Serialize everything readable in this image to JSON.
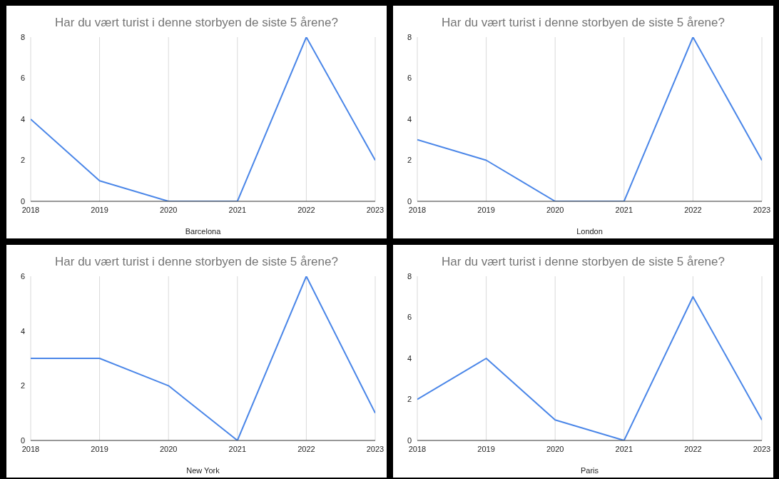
{
  "chart_data": [
    {
      "type": "line",
      "title": "Har du vært turist i denne storbyen de siste 5 årene?",
      "xlabel": "Barcelona",
      "x": [
        2018,
        2019,
        2020,
        2021,
        2022,
        2023
      ],
      "xlim": [
        2018,
        2023
      ],
      "xticks": [
        2018,
        2019,
        2020,
        2021,
        2022,
        2023
      ],
      "ylim": [
        0,
        8
      ],
      "yticks": [
        0,
        2,
        4,
        6,
        8
      ],
      "grid": true,
      "legend": false,
      "marker": "none",
      "series": [
        {
          "color": "#4a86e8",
          "values": [
            4,
            1,
            0,
            0,
            8,
            2
          ]
        }
      ]
    },
    {
      "type": "line",
      "title": "Har du vært turist i denne storbyen de siste 5 årene?",
      "xlabel": "London",
      "x": [
        2018,
        2019,
        2020,
        2021,
        2022,
        2023
      ],
      "xlim": [
        2018,
        2023
      ],
      "xticks": [
        2018,
        2019,
        2020,
        2021,
        2022,
        2023
      ],
      "ylim": [
        0,
        8
      ],
      "yticks": [
        0,
        2,
        4,
        6,
        8
      ],
      "grid": true,
      "legend": false,
      "marker": "none",
      "series": [
        {
          "color": "#4a86e8",
          "values": [
            3,
            2,
            0,
            0,
            8,
            2
          ]
        }
      ]
    },
    {
      "type": "line",
      "title": "Har du vært turist i denne storbyen de siste 5 årene?",
      "xlabel": "New York",
      "x": [
        2018,
        2019,
        2020,
        2021,
        2022,
        2023
      ],
      "xlim": [
        2018,
        2023
      ],
      "xticks": [
        2018,
        2019,
        2020,
        2021,
        2022,
        2023
      ],
      "ylim": [
        0,
        6
      ],
      "yticks": [
        0,
        2,
        4,
        6
      ],
      "grid": true,
      "legend": false,
      "marker": "none",
      "series": [
        {
          "color": "#4a86e8",
          "values": [
            3,
            3,
            2,
            0,
            6,
            1
          ]
        }
      ]
    },
    {
      "type": "line",
      "title": "Har du vært turist i denne storbyen de siste 5 årene?",
      "xlabel": "Paris",
      "x": [
        2018,
        2019,
        2020,
        2021,
        2022,
        2023
      ],
      "xlim": [
        2018,
        2023
      ],
      "xticks": [
        2018,
        2019,
        2020,
        2021,
        2022,
        2023
      ],
      "ylim": [
        0,
        8
      ],
      "yticks": [
        0,
        2,
        4,
        6,
        8
      ],
      "grid": true,
      "legend": false,
      "marker": "none",
      "series": [
        {
          "color": "#4a86e8",
          "values": [
            2,
            4,
            1,
            0,
            7,
            1
          ]
        }
      ]
    }
  ]
}
